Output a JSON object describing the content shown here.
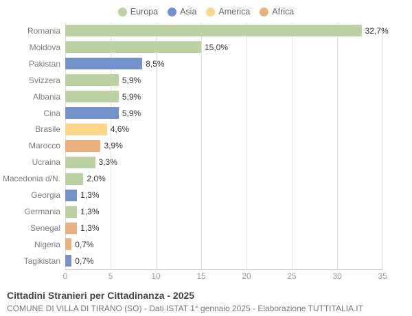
{
  "title": "Cittadini Stranieri per Cittadinanza - 2025",
  "subtitle": "COMUNE DI VILLA DI TIRANO (SO) - Dati ISTAT 1° gennaio 2025 - Elaborazione TUTTITALIA.IT",
  "legend": [
    {
      "label": "Europa",
      "color": "#bdd2a4"
    },
    {
      "label": "Asia",
      "color": "#7391ca"
    },
    {
      "label": "America",
      "color": "#fcd689"
    },
    {
      "label": "Africa",
      "color": "#eab17e"
    }
  ],
  "chart_data": {
    "type": "bar",
    "orientation": "horizontal",
    "title": "Cittadini Stranieri per Cittadinanza - 2025",
    "categories": [
      "Romania",
      "Moldova",
      "Pakistan",
      "Svizzera",
      "Albania",
      "Cina",
      "Brasile",
      "Marocco",
      "Ucraina",
      "Macedonia d/N.",
      "Georgia",
      "Germania",
      "Senegal",
      "Nigeria",
      "Tagikistan"
    ],
    "values": [
      32.7,
      15.0,
      8.5,
      5.9,
      5.9,
      5.9,
      4.6,
      3.9,
      3.3,
      2.0,
      1.3,
      1.3,
      1.3,
      0.7,
      0.7
    ],
    "value_labels": [
      "32,7%",
      "15,0%",
      "8,5%",
      "5,9%",
      "5,9%",
      "5,9%",
      "4,6%",
      "3,9%",
      "3,3%",
      "2,0%",
      "1,3%",
      "1,3%",
      "1,3%",
      "0,7%",
      "0,7%"
    ],
    "groups": [
      "Europa",
      "Europa",
      "Asia",
      "Europa",
      "Europa",
      "Asia",
      "America",
      "Africa",
      "Europa",
      "Europa",
      "Asia",
      "Europa",
      "Africa",
      "Africa",
      "Asia"
    ],
    "xlabel": "",
    "ylabel": "",
    "xlim": [
      0,
      35
    ],
    "xticks": [
      0,
      5,
      10,
      15,
      20,
      25,
      30,
      35
    ],
    "grid": true,
    "legend_position": "top",
    "group_colors": {
      "Europa": "#bdd2a4",
      "Asia": "#7391ca",
      "America": "#fcd689",
      "Africa": "#eab17e"
    }
  }
}
